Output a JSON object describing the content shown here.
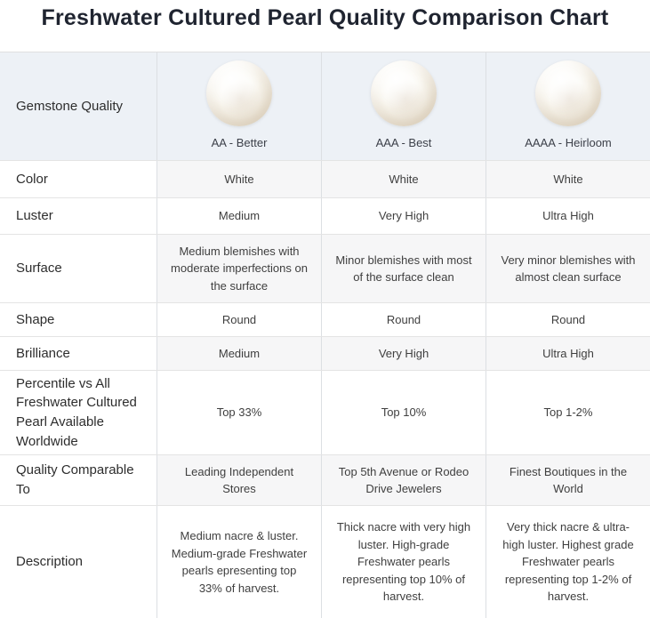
{
  "title": "Freshwater Cultured Pearl Quality Comparison Chart",
  "chart_data": {
    "type": "table",
    "title": "Freshwater Cultured Pearl Quality Comparison Chart",
    "columns": [
      "Gemstone Quality",
      "AA - Better",
      "AAA - Best",
      "AAAA - Heirloom"
    ],
    "rows": [
      [
        "Color",
        "White",
        "White",
        "White"
      ],
      [
        "Luster",
        "Medium",
        "Very High",
        "Ultra High"
      ],
      [
        "Surface",
        "Medium blemishes with moderate imperfections on the surface",
        "Minor blemishes with most of the surface clean",
        "Very minor blemishes with almost clean surface"
      ],
      [
        "Shape",
        "Round",
        "Round",
        "Round"
      ],
      [
        "Brilliance",
        "Medium",
        "Very High",
        "Ultra High"
      ],
      [
        "Percentile vs All Freshwater Cultured Pearl Available Worldwide",
        "Top 33%",
        "Top 10%",
        "Top 1-2%"
      ],
      [
        "Quality Comparable To",
        "Leading Independent Stores",
        "Top 5th Avenue or Rodeo Drive Jewelers",
        "Finest Boutiques in the World"
      ],
      [
        "Description",
        "Medium nacre & luster. Medium-grade Freshwater pearls epresenting top 33% of harvest.",
        "Thick nacre with very high luster. High-grade Freshwater pearls representing top 10% of harvest.",
        "Very thick nacre & ultra-high luster. Highest grade Freshwater pearls representing top 1-2% of harvest."
      ]
    ],
    "legend": null,
    "notes": "Header row shows a pearl photo above each grade label"
  },
  "colors": {
    "header_bg": "#edf1f6",
    "shaded_cell_bg": "#f6f6f7",
    "border": "#e0e0e0",
    "title_text": "#1f2430",
    "body_text": "#3f3f3f",
    "pearl_base": "#f4efe4"
  }
}
